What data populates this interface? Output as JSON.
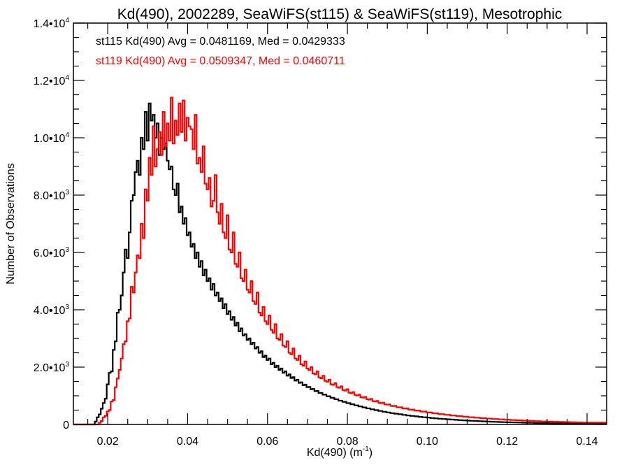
{
  "chart_data": {
    "type": "line",
    "style": "histogram-step",
    "title": "Kd(490), 2002289, SeaWiFS(st115) & SeaWiFS(st119), Mesotrophic",
    "xlabel": "Kd(490) (m⁻¹)",
    "xlabel_main": "Kd(490) (m",
    "xlabel_sup": "-1",
    "xlabel_close": ")",
    "ylabel": "Number of Observations",
    "xlim": [
      0.0114,
      0.1449
    ],
    "ylim": [
      0,
      14000
    ],
    "grid": false,
    "legend_position": "top-left",
    "x_ticks": [
      {
        "value": 0.02,
        "label": "0.02"
      },
      {
        "value": 0.04,
        "label": "0.04"
      },
      {
        "value": 0.06,
        "label": "0.06"
      },
      {
        "value": 0.08,
        "label": "0.08"
      },
      {
        "value": 0.1,
        "label": "0.10"
      },
      {
        "value": 0.12,
        "label": "0.12"
      },
      {
        "value": 0.14,
        "label": "0.14"
      }
    ],
    "x_minor_step": 0.005,
    "y_ticks": [
      {
        "value": 0,
        "mant": "0",
        "exp": ""
      },
      {
        "value": 2000,
        "mant": "2.0•10",
        "exp": "3"
      },
      {
        "value": 4000,
        "mant": "4.0•10",
        "exp": "3"
      },
      {
        "value": 6000,
        "mant": "6.0•10",
        "exp": "3"
      },
      {
        "value": 8000,
        "mant": "8.0•10",
        "exp": "3"
      },
      {
        "value": 10000,
        "mant": "1.0•10",
        "exp": "4"
      },
      {
        "value": 12000,
        "mant": "1.2•10",
        "exp": "4"
      },
      {
        "value": 14000,
        "mant": "1.4•10",
        "exp": "4"
      }
    ],
    "y_minor_step": 500,
    "bin_width": 0.0005,
    "series": [
      {
        "name": "st115",
        "legend": "st115 Kd(490) Avg = 0.0481169, Med = 0.0429333",
        "color": "#000000",
        "avg": 0.0481169,
        "median": 0.0429333,
        "x_start": 0.0115,
        "values": [
          0,
          0,
          0,
          0,
          0,
          0,
          0,
          0,
          0,
          0,
          0,
          100,
          250,
          350,
          550,
          750,
          900,
          1400,
          1800,
          1850,
          2600,
          2900,
          3900,
          4000,
          4500,
          5300,
          6100,
          5800,
          6700,
          7800,
          8000,
          8800,
          9200,
          8700,
          10000,
          9600,
          10900,
          9900,
          11200,
          10600,
          10800,
          10000,
          10500,
          9400,
          10000,
          9600,
          9800,
          9200,
          8900,
          9000,
          8200,
          8000,
          8400,
          7400,
          7600,
          7000,
          7200,
          6600,
          6700,
          6200,
          6300,
          5800,
          6000,
          5500,
          5700,
          5200,
          5400,
          5000,
          5100,
          4700,
          4900,
          4500,
          4600,
          4300,
          4400,
          4050,
          4200,
          3850,
          3950,
          3650,
          3750,
          3450,
          3550,
          3250,
          3350,
          3100,
          3150,
          2950,
          3000,
          2800,
          2850,
          2650,
          2700,
          2500,
          2550,
          2350,
          2400,
          2250,
          2300,
          2100,
          2150,
          2000,
          2050,
          1900,
          1950,
          1800,
          1850,
          1700,
          1750,
          1620,
          1650,
          1530,
          1560,
          1450,
          1470,
          1370,
          1390,
          1300,
          1310,
          1230,
          1240,
          1160,
          1170,
          1100,
          1100,
          1040,
          1040,
          980,
          985,
          930,
          930,
          880,
          880,
          830,
          830,
          790,
          790,
          745,
          745,
          705,
          705,
          665,
          665,
          630,
          630,
          595,
          595,
          560,
          560,
          530,
          530,
          500,
          500,
          470,
          470,
          445,
          445,
          420,
          420,
          395,
          395,
          375,
          375,
          355,
          355,
          335,
          335,
          315,
          315,
          298,
          298,
          282,
          282,
          266,
          266,
          252,
          252,
          238,
          238,
          225,
          225,
          212,
          212,
          200,
          200,
          190,
          190,
          180,
          180,
          170,
          170,
          160,
          160,
          151,
          151,
          143,
          143,
          135,
          135,
          128,
          128,
          121,
          121,
          114,
          114,
          108,
          108,
          102,
          102,
          96,
          96,
          91,
          91,
          86,
          86,
          81,
          81,
          77,
          77,
          73,
          73,
          69,
          69,
          65,
          65,
          61,
          61,
          58,
          58,
          55,
          55,
          52,
          52,
          49,
          49,
          46,
          46,
          44,
          44,
          41,
          41,
          39,
          39,
          37,
          37,
          35,
          35,
          33,
          33,
          31,
          31,
          29,
          29,
          28,
          28,
          26,
          26,
          25,
          25,
          24,
          24,
          22,
          22,
          21,
          21,
          20,
          20,
          19,
          19
        ]
      },
      {
        "name": "st119",
        "legend": "st119 Kd(490) Avg = 0.0509347, Med = 0.0460711",
        "color": "#ff0000",
        "avg": 0.0509347,
        "median": 0.0460711,
        "x_start": 0.0115,
        "values": [
          0,
          0,
          0,
          0,
          0,
          0,
          0,
          0,
          0,
          0,
          0,
          0,
          0,
          60,
          120,
          250,
          300,
          450,
          500,
          800,
          850,
          1300,
          1600,
          1900,
          2300,
          2800,
          2900,
          3600,
          3700,
          4800,
          4600,
          5300,
          5900,
          5800,
          7000,
          6500,
          8200,
          7800,
          9300,
          8700,
          10400,
          9000,
          9600,
          10200,
          9400,
          10900,
          9700,
          10500,
          9900,
          11400,
          9800,
          10600,
          10100,
          11200,
          10200,
          11300,
          9900,
          10700,
          10400,
          10300,
          9600,
          10800,
          9100,
          9300,
          8800,
          9700,
          8400,
          8200,
          8600,
          7600,
          7800,
          8700,
          7400,
          7000,
          7700,
          6700,
          6500,
          7300,
          6100,
          6000,
          6700,
          5600,
          5500,
          6000,
          5100,
          5000,
          5400,
          4700,
          4600,
          5000,
          4300,
          4200,
          4600,
          3900,
          3800,
          4100,
          3600,
          3500,
          3800,
          3300,
          3200,
          3500,
          3000,
          2950,
          3150,
          2750,
          2700,
          2900,
          2500,
          2450,
          2650,
          2300,
          2250,
          2400,
          2100,
          2050,
          2200,
          1950,
          1900,
          2000,
          1780,
          1750,
          1850,
          1640,
          1610,
          1700,
          1520,
          1490,
          1560,
          1400,
          1380,
          1440,
          1300,
          1280,
          1330,
          1200,
          1180,
          1230,
          1110,
          1090,
          1130,
          1030,
          1010,
          1040,
          950,
          935,
          960,
          880,
          865,
          890,
          815,
          800,
          820,
          755,
          745,
          760,
          700,
          690,
          700,
          650,
          640,
          650,
          600,
          595,
          600,
          560,
          555,
          560,
          520,
          515,
          520,
          485,
          480,
          485,
          450,
          447,
          450,
          420,
          417,
          420,
          390,
          388,
          390,
          362,
          360,
          362,
          337,
          335,
          337,
          313,
          312,
          313,
          292,
          290,
          292,
          272,
          270,
          272,
          253,
          252,
          253,
          236,
          235,
          236,
          220,
          219,
          220,
          205,
          204,
          205,
          191,
          190,
          191,
          178,
          177,
          178,
          166,
          165,
          166,
          155,
          154,
          155,
          144,
          143,
          144,
          134,
          133,
          134,
          125,
          124,
          125,
          116,
          115,
          116,
          108,
          107,
          108,
          101,
          100,
          101,
          94,
          93,
          94,
          88,
          87,
          88,
          82,
          81,
          82,
          76,
          75,
          76,
          71,
          70,
          71,
          66,
          65,
          66
        ]
      }
    ]
  }
}
